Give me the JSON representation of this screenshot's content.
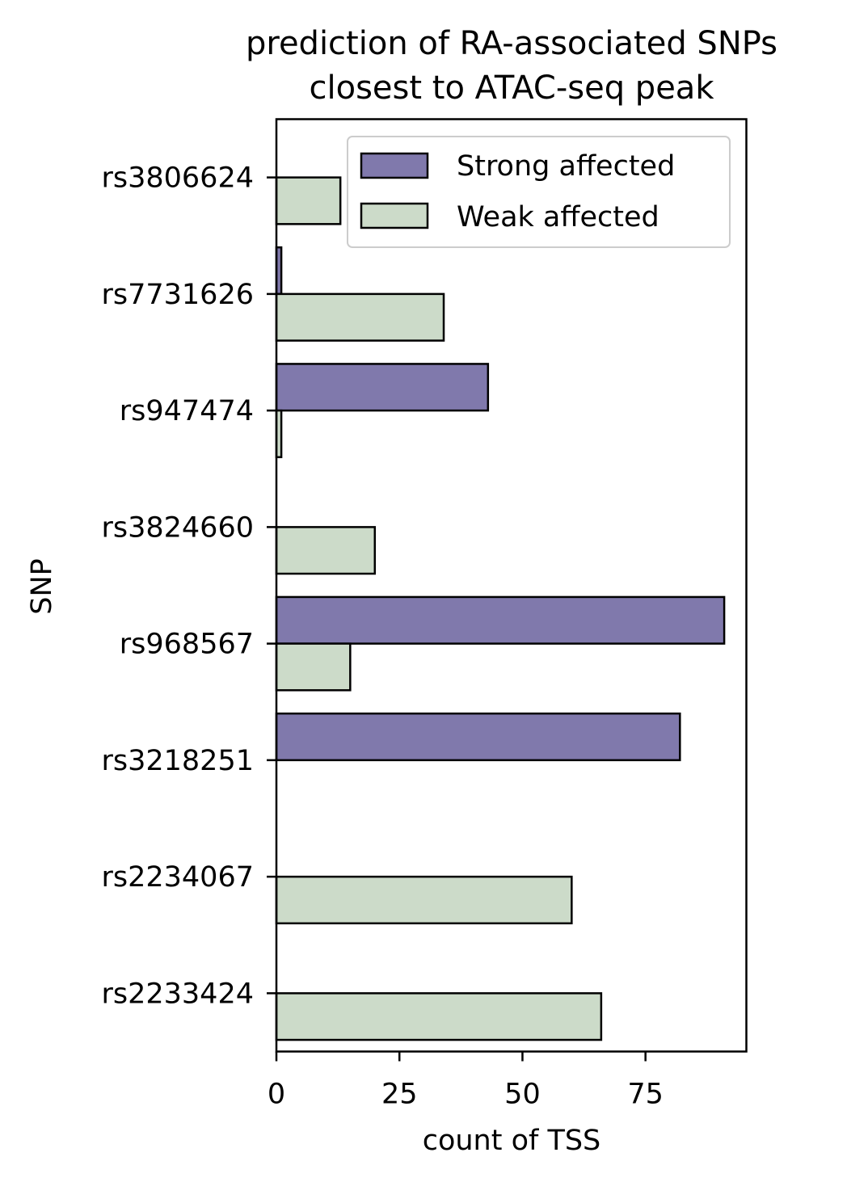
{
  "chart_data": {
    "type": "bar",
    "orientation": "horizontal",
    "title_lines": [
      "prediction of RA-associated SNPs",
      "closest to ATAC-seq peak"
    ],
    "xlabel": "count of TSS",
    "ylabel": "SNP",
    "categories": [
      "rs3806624",
      "rs7731626",
      "rs947474",
      "rs3824660",
      "rs968567",
      "rs3218251",
      "rs2234067",
      "rs2233424"
    ],
    "series": [
      {
        "name": "Strong affected",
        "color": "#8079ac",
        "values": [
          0,
          1,
          43,
          0,
          91,
          82,
          0,
          0
        ]
      },
      {
        "name": "Weak affected",
        "color": "#ccdbc9",
        "values": [
          13,
          34,
          1,
          20,
          15,
          0,
          60,
          66
        ]
      }
    ],
    "xlim": [
      0,
      95.5
    ],
    "xticks": [
      0,
      25,
      50,
      75
    ],
    "grid": false,
    "legend_position": "upper-right"
  }
}
